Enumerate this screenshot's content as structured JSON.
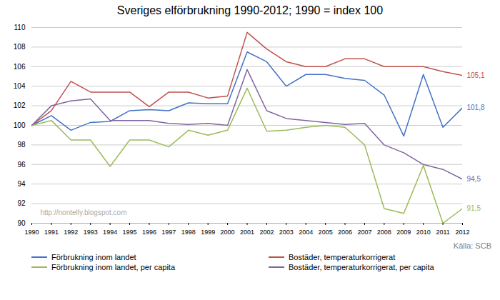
{
  "chart_data": {
    "type": "line",
    "title": "Sveriges elförbrukning 1990-2012; 1990 = index 100",
    "x": [
      1990,
      1991,
      1992,
      1993,
      1994,
      1995,
      1996,
      1997,
      1998,
      1999,
      2000,
      2001,
      2002,
      2003,
      2004,
      2005,
      2006,
      2007,
      2008,
      2009,
      2010,
      2011,
      2012
    ],
    "series": [
      {
        "name": "Förbrukning inom landet",
        "color": "#4472C4",
        "end_label": "101,8",
        "values": [
          100.0,
          101.0,
          99.5,
          100.3,
          100.4,
          101.5,
          101.6,
          101.5,
          102.3,
          102.2,
          102.2,
          107.5,
          106.5,
          104.0,
          105.2,
          105.2,
          104.8,
          104.6,
          103.1,
          98.9,
          105.2,
          99.8,
          101.8
        ]
      },
      {
        "name": "Bostäder, temperaturkorrigerat",
        "color": "#C0504D",
        "end_label": "105,1",
        "values": [
          100.0,
          101.5,
          104.5,
          103.4,
          103.4,
          103.4,
          101.9,
          103.4,
          103.4,
          102.8,
          103.0,
          109.5,
          107.8,
          106.5,
          106.0,
          106.0,
          106.8,
          106.8,
          106.0,
          106.0,
          106.0,
          105.5,
          105.1
        ]
      },
      {
        "name": "Förbrukning inom landet, per capita",
        "color": "#9BBB59",
        "end_label": "91,5",
        "values": [
          100.0,
          100.5,
          98.5,
          98.5,
          95.8,
          98.5,
          98.5,
          97.8,
          99.5,
          99.0,
          99.5,
          103.8,
          99.4,
          99.5,
          99.8,
          100.0,
          99.8,
          98.0,
          91.5,
          91.0,
          95.9,
          90.0,
          91.5
        ]
      },
      {
        "name": "Bostäder, temperaturkorrigerat, per capita",
        "color": "#8064A2",
        "end_label": "94,5",
        "values": [
          100.0,
          102.0,
          102.5,
          102.7,
          100.5,
          100.5,
          100.5,
          100.2,
          100.1,
          100.2,
          100.0,
          105.7,
          101.5,
          100.7,
          100.5,
          100.3,
          100.1,
          100.2,
          98.0,
          97.2,
          96.0,
          95.5,
          94.5
        ]
      }
    ],
    "xlim": [
      1990,
      2012
    ],
    "xticks": [
      1990,
      1991,
      1992,
      1993,
      1994,
      1995,
      1996,
      1997,
      1998,
      1999,
      2000,
      2001,
      2002,
      2003,
      2004,
      2005,
      2006,
      2007,
      2008,
      2009,
      2010,
      2011,
      2012
    ],
    "ylim": [
      90,
      110
    ],
    "yticks": [
      90,
      92,
      94,
      96,
      98,
      100,
      102,
      104,
      106,
      108,
      110
    ],
    "grid": true,
    "legend": "bottom",
    "annotations": [
      "http://nontelly.blogspot.com"
    ],
    "caption": "Källa: SCB"
  }
}
